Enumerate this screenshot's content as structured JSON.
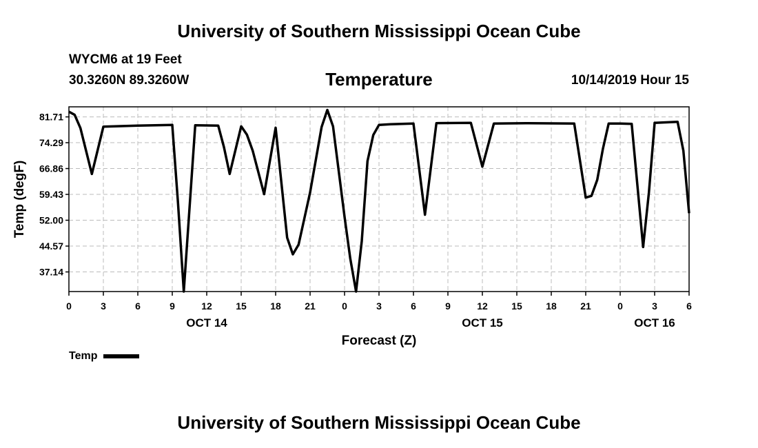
{
  "header": {
    "institution": "University of Southern Mississippi Ocean Cube",
    "station": "WYCM6 at 19 Feet",
    "coords": "30.3260N 89.3260W",
    "datetime": "10/14/2019 Hour 15"
  },
  "footer": {
    "institution": "University of Southern Mississippi Ocean Cube"
  },
  "colors": {
    "line": "#000000",
    "grid": "#bbbbbb",
    "frame": "#000000"
  },
  "chart_data": {
    "type": "line",
    "title": "Temperature",
    "xlabel": "Forecast (Z)",
    "ylabel": "Temp (degF)",
    "xlim": [
      0,
      54
    ],
    "ylim": [
      31.5,
      84.6
    ],
    "grid": true,
    "y_ticks": [
      "37.14",
      "44.57",
      "52.00",
      "59.43",
      "66.86",
      "74.29",
      "81.71"
    ],
    "x_ticks": [
      {
        "x": 0,
        "label": "0"
      },
      {
        "x": 3,
        "label": "3"
      },
      {
        "x": 6,
        "label": "6"
      },
      {
        "x": 9,
        "label": "9"
      },
      {
        "x": 12,
        "label": "12"
      },
      {
        "x": 15,
        "label": "15"
      },
      {
        "x": 18,
        "label": "18"
      },
      {
        "x": 21,
        "label": "21"
      },
      {
        "x": 24,
        "label": "0"
      },
      {
        "x": 27,
        "label": "3"
      },
      {
        "x": 30,
        "label": "6"
      },
      {
        "x": 33,
        "label": "9"
      },
      {
        "x": 36,
        "label": "12"
      },
      {
        "x": 39,
        "label": "15"
      },
      {
        "x": 42,
        "label": "18"
      },
      {
        "x": 45,
        "label": "21"
      },
      {
        "x": 48,
        "label": "0"
      },
      {
        "x": 51,
        "label": "3"
      },
      {
        "x": 54,
        "label": "6"
      }
    ],
    "day_labels": [
      {
        "x": 12,
        "label": "OCT 14"
      },
      {
        "x": 36,
        "label": "OCT 15"
      },
      {
        "x": 51,
        "label": "OCT 16"
      }
    ],
    "legend": [
      {
        "name": "Temp",
        "position": "bottom-left"
      }
    ],
    "series": [
      {
        "name": "Temp",
        "x": [
          0,
          0.5,
          1,
          2,
          3,
          6,
          9,
          9.5,
          10,
          11,
          13,
          13.5,
          14,
          15,
          15.5,
          16,
          17,
          18,
          19,
          19.5,
          20,
          21,
          22,
          22.5,
          23,
          24,
          24.5,
          25,
          25.5,
          26,
          26.5,
          27,
          28,
          30,
          31,
          32,
          35,
          36,
          37,
          40,
          44,
          45,
          45.5,
          46,
          46.5,
          47,
          48,
          49,
          50,
          50.5,
          51,
          53,
          53.5,
          54
        ],
        "y": [
          83.2,
          82.3,
          78.5,
          65.3,
          78.9,
          79.2,
          79.4,
          57.0,
          31.5,
          79.3,
          79.2,
          73.0,
          65.3,
          79.0,
          76.6,
          72.0,
          59.5,
          78.6,
          47.0,
          42.2,
          45.0,
          60.0,
          78.8,
          83.7,
          79.0,
          53.0,
          41.0,
          31.5,
          46.0,
          69.0,
          76.5,
          79.4,
          79.6,
          79.8,
          53.6,
          79.9,
          80.0,
          67.4,
          79.8,
          79.9,
          79.8,
          58.5,
          59.0,
          63.6,
          72.6,
          79.8,
          79.8,
          79.7,
          44.3,
          60.0,
          80.0,
          80.3,
          72.0,
          54.0
        ]
      }
    ]
  }
}
